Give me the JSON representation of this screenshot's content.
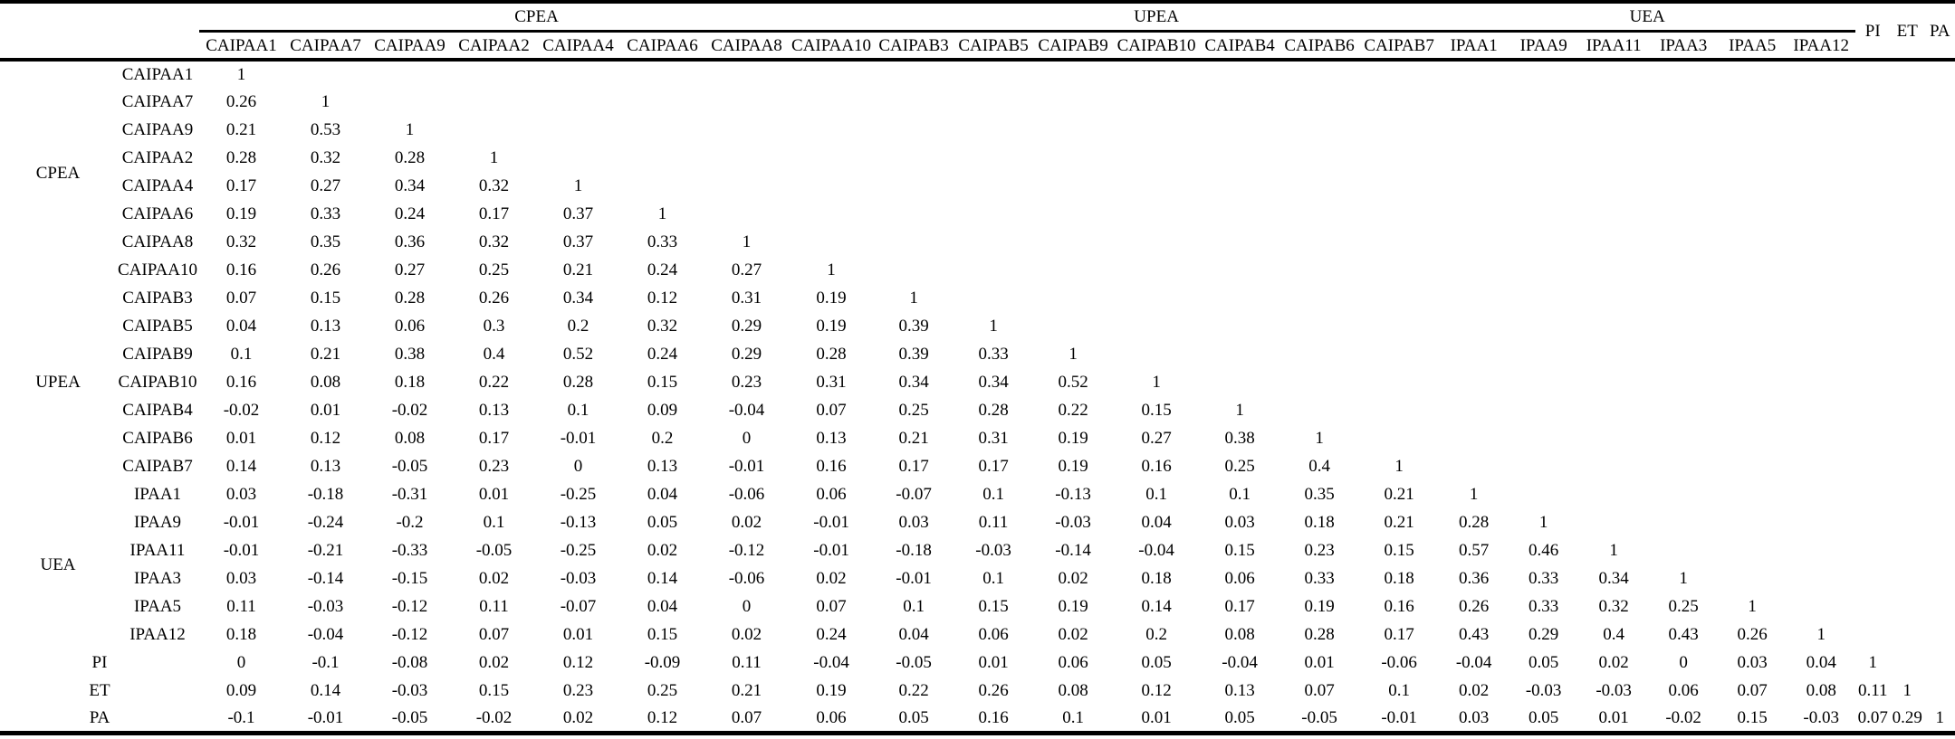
{
  "table": {
    "column_groups": [
      {
        "label": "CPEA",
        "columns": [
          "CAIPAA1",
          "CAIPAA7",
          "CAIPAA9",
          "CAIPAA2",
          "CAIPAA4",
          "CAIPAA6",
          "CAIPAA8",
          "CAIPAA10"
        ]
      },
      {
        "label": "UPEA",
        "columns": [
          "CAIPAB3",
          "CAIPAB5",
          "CAIPAB9",
          "CAIPAB10",
          "CAIPAB4",
          "CAIPAB6",
          "CAIPAB7"
        ]
      },
      {
        "label": "UEA",
        "columns": [
          "IPAA1",
          "IPAA9",
          "IPAA11",
          "IPAA3",
          "IPAA5",
          "IPAA12"
        ]
      }
    ],
    "trailing_columns": [
      "PI",
      "ET",
      "PA"
    ],
    "rows": [
      {
        "group": "CPEA",
        "label": "CAIPAA1",
        "values": [
          "1"
        ]
      },
      {
        "group": "CPEA",
        "label": "CAIPAA7",
        "values": [
          "0.26",
          "1"
        ]
      },
      {
        "group": "CPEA",
        "label": "CAIPAA9",
        "values": [
          "0.21",
          "0.53",
          "1"
        ]
      },
      {
        "group": "CPEA",
        "label": "CAIPAA2",
        "values": [
          "0.28",
          "0.32",
          "0.28",
          "1"
        ]
      },
      {
        "group": "CPEA",
        "label": "CAIPAA4",
        "values": [
          "0.17",
          "0.27",
          "0.34",
          "0.32",
          "1"
        ]
      },
      {
        "group": "CPEA",
        "label": "CAIPAA6",
        "values": [
          "0.19",
          "0.33",
          "0.24",
          "0.17",
          "0.37",
          "1"
        ]
      },
      {
        "group": "CPEA",
        "label": "CAIPAA8",
        "values": [
          "0.32",
          "0.35",
          "0.36",
          "0.32",
          "0.37",
          "0.33",
          "1"
        ]
      },
      {
        "group": "CPEA",
        "label": "CAIPAA10",
        "values": [
          "0.16",
          "0.26",
          "0.27",
          "0.25",
          "0.21",
          "0.24",
          "0.27",
          "1"
        ]
      },
      {
        "group": "UPEA",
        "label": "CAIPAB3",
        "values": [
          "0.07",
          "0.15",
          "0.28",
          "0.26",
          "0.34",
          "0.12",
          "0.31",
          "0.19",
          "1"
        ]
      },
      {
        "group": "UPEA",
        "label": "CAIPAB5",
        "values": [
          "0.04",
          "0.13",
          "0.06",
          "0.3",
          "0.2",
          "0.32",
          "0.29",
          "0.19",
          "0.39",
          "1"
        ]
      },
      {
        "group": "UPEA",
        "label": "CAIPAB9",
        "values": [
          "0.1",
          "0.21",
          "0.38",
          "0.4",
          "0.52",
          "0.24",
          "0.29",
          "0.28",
          "0.39",
          "0.33",
          "1"
        ]
      },
      {
        "group": "UPEA",
        "label": "CAIPAB10",
        "values": [
          "0.16",
          "0.08",
          "0.18",
          "0.22",
          "0.28",
          "0.15",
          "0.23",
          "0.31",
          "0.34",
          "0.34",
          "0.52",
          "1"
        ]
      },
      {
        "group": "UPEA",
        "label": "CAIPAB4",
        "values": [
          "-0.02",
          "0.01",
          "-0.02",
          "0.13",
          "0.1",
          "0.09",
          "-0.04",
          "0.07",
          "0.25",
          "0.28",
          "0.22",
          "0.15",
          "1"
        ]
      },
      {
        "group": "UPEA",
        "label": "CAIPAB6",
        "values": [
          "0.01",
          "0.12",
          "0.08",
          "0.17",
          "-0.01",
          "0.2",
          "0",
          "0.13",
          "0.21",
          "0.31",
          "0.19",
          "0.27",
          "0.38",
          "1"
        ]
      },
      {
        "group": "UPEA",
        "label": "CAIPAB7",
        "values": [
          "0.14",
          "0.13",
          "-0.05",
          "0.23",
          "0",
          "0.13",
          "-0.01",
          "0.16",
          "0.17",
          "0.17",
          "0.19",
          "0.16",
          "0.25",
          "0.4",
          "1"
        ]
      },
      {
        "group": "UEA",
        "label": "IPAA1",
        "values": [
          "0.03",
          "-0.18",
          "-0.31",
          "0.01",
          "-0.25",
          "0.04",
          "-0.06",
          "0.06",
          "-0.07",
          "0.1",
          "-0.13",
          "0.1",
          "0.1",
          "0.35",
          "0.21",
          "1"
        ]
      },
      {
        "group": "UEA",
        "label": "IPAA9",
        "values": [
          "-0.01",
          "-0.24",
          "-0.2",
          "0.1",
          "-0.13",
          "0.05",
          "0.02",
          "-0.01",
          "0.03",
          "0.11",
          "-0.03",
          "0.04",
          "0.03",
          "0.18",
          "0.21",
          "0.28",
          "1"
        ]
      },
      {
        "group": "UEA",
        "label": "IPAA11",
        "values": [
          "-0.01",
          "-0.21",
          "-0.33",
          "-0.05",
          "-0.25",
          "0.02",
          "-0.12",
          "-0.01",
          "-0.18",
          "-0.03",
          "-0.14",
          "-0.04",
          "0.15",
          "0.23",
          "0.15",
          "0.57",
          "0.46",
          "1"
        ]
      },
      {
        "group": "UEA",
        "label": "IPAA3",
        "values": [
          "0.03",
          "-0.14",
          "-0.15",
          "0.02",
          "-0.03",
          "0.14",
          "-0.06",
          "0.02",
          "-0.01",
          "0.1",
          "0.02",
          "0.18",
          "0.06",
          "0.33",
          "0.18",
          "0.36",
          "0.33",
          "0.34",
          "1"
        ]
      },
      {
        "group": "UEA",
        "label": "IPAA5",
        "values": [
          "0.11",
          "-0.03",
          "-0.12",
          "0.11",
          "-0.07",
          "0.04",
          "0",
          "0.07",
          "0.1",
          "0.15",
          "0.19",
          "0.14",
          "0.17",
          "0.19",
          "0.16",
          "0.26",
          "0.33",
          "0.32",
          "0.25",
          "1"
        ]
      },
      {
        "group": "UEA",
        "label": "IPAA12",
        "values": [
          "0.18",
          "-0.04",
          "-0.12",
          "0.07",
          "0.01",
          "0.15",
          "0.02",
          "0.24",
          "0.04",
          "0.06",
          "0.02",
          "0.2",
          "0.08",
          "0.28",
          "0.17",
          "0.43",
          "0.29",
          "0.4",
          "0.43",
          "0.26",
          "1"
        ]
      },
      {
        "group": null,
        "label": "PI",
        "values": [
          "0",
          "-0.1",
          "-0.08",
          "0.02",
          "0.12",
          "-0.09",
          "0.11",
          "-0.04",
          "-0.05",
          "0.01",
          "0.06",
          "0.05",
          "-0.04",
          "0.01",
          "-0.06",
          "-0.04",
          "0.05",
          "0.02",
          "0",
          "0.03",
          "0.04",
          "1"
        ]
      },
      {
        "group": null,
        "label": "ET",
        "values": [
          "0.09",
          "0.14",
          "-0.03",
          "0.15",
          "0.23",
          "0.25",
          "0.21",
          "0.19",
          "0.22",
          "0.26",
          "0.08",
          "0.12",
          "0.13",
          "0.07",
          "0.1",
          "0.02",
          "-0.03",
          "-0.03",
          "0.06",
          "0.07",
          "0.08",
          "0.11",
          "1"
        ]
      },
      {
        "group": null,
        "label": "PA",
        "values": [
          "-0.1",
          "-0.01",
          "-0.05",
          "-0.02",
          "0.02",
          "0.12",
          "0.07",
          "0.06",
          "0.05",
          "0.16",
          "0.1",
          "0.01",
          "0.05",
          "-0.05",
          "-0.01",
          "0.03",
          "0.05",
          "0.01",
          "-0.02",
          "0.15",
          "-0.03",
          "0.07",
          "0.29",
          "1"
        ]
      }
    ]
  }
}
